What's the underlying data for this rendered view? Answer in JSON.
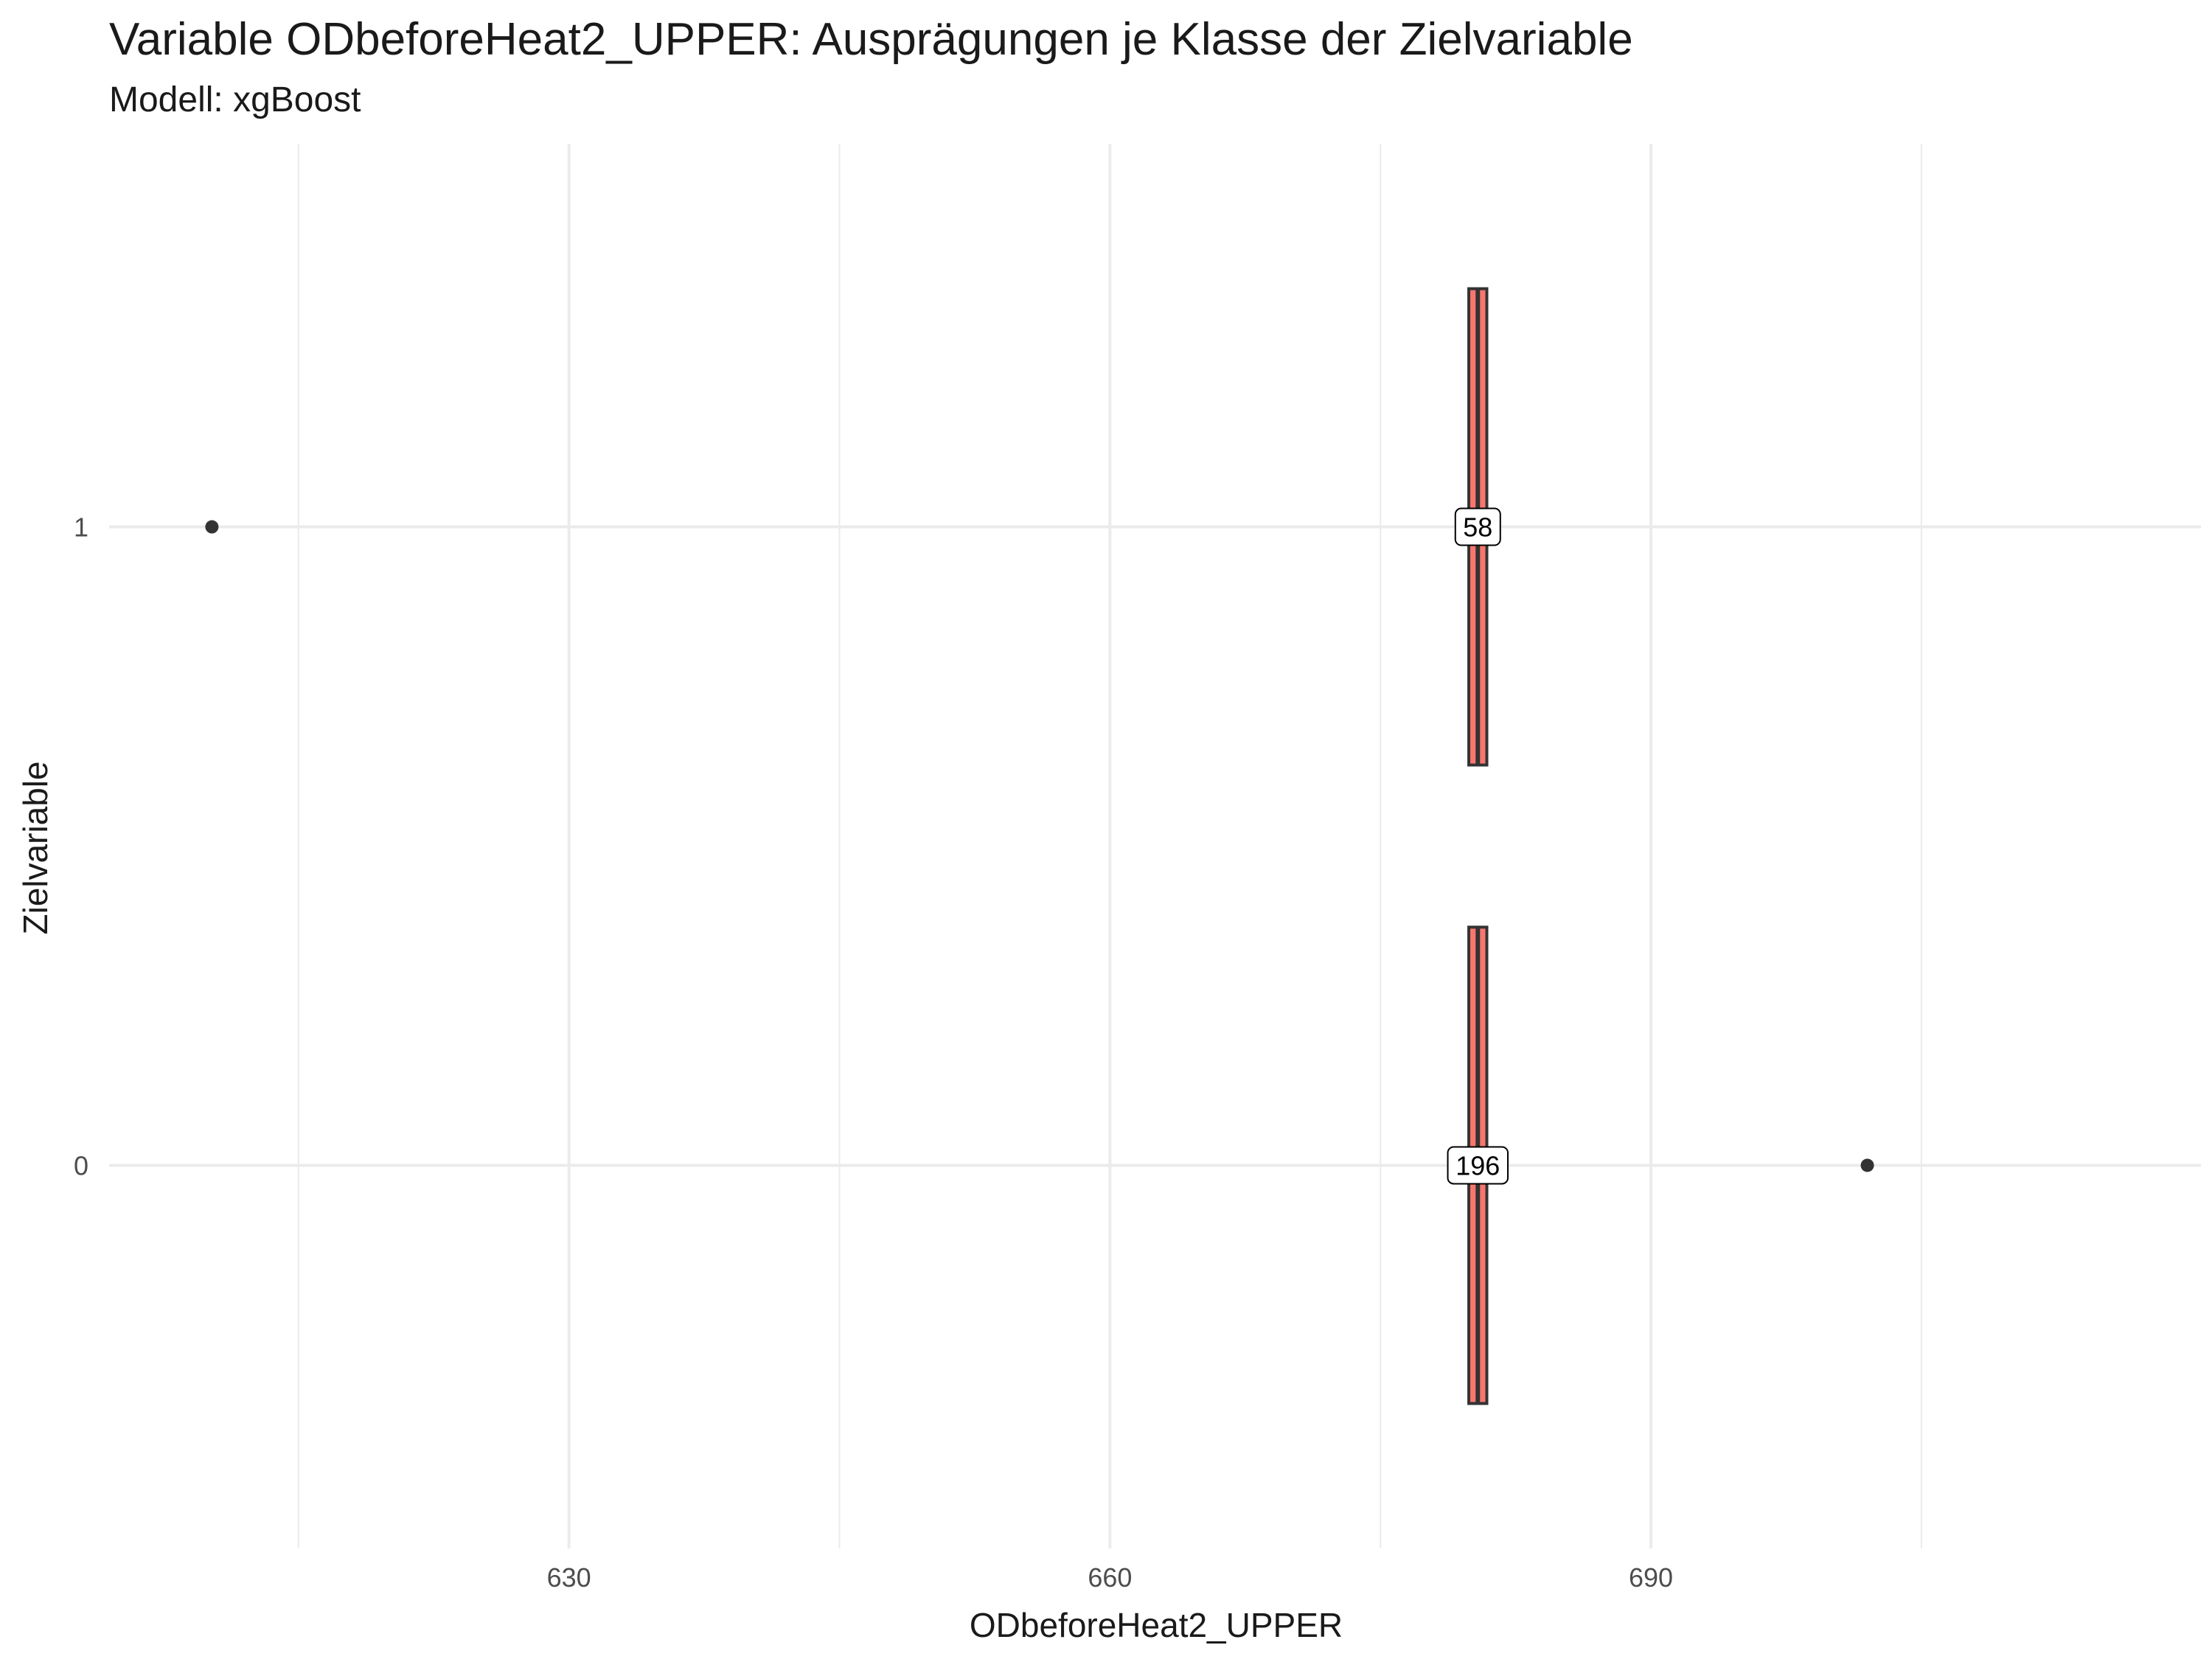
{
  "chart_data": {
    "type": "boxplot",
    "orientation": "horizontal",
    "title": "Variable ODbeforeHeat2_UPPER: Ausprägungen je Klasse der Zielvariable",
    "subtitle": "Modell: xgBoost",
    "xlabel": "ODbeforeHeat2_UPPER",
    "ylabel": "Zielvariable",
    "xlim": [
      604.5,
      720.5
    ],
    "x_ticks": [
      630,
      660,
      690
    ],
    "x_minor_ticks": [
      615,
      645,
      675,
      705
    ],
    "categories": [
      "0",
      "1"
    ],
    "grid": true,
    "fill_color": "#F8766D",
    "boxes": [
      {
        "category": "0",
        "q1": 679.9,
        "median": 680.4,
        "q3": 680.9,
        "whisker_low": 679.9,
        "whisker_high": 680.9,
        "outliers": [
          702.0
        ],
        "count_label": "196"
      },
      {
        "category": "1",
        "q1": 679.9,
        "median": 680.4,
        "q3": 680.9,
        "whisker_low": 679.3,
        "whisker_high": 680.9,
        "outliers": [
          610.2
        ],
        "count_label": "58"
      }
    ]
  }
}
